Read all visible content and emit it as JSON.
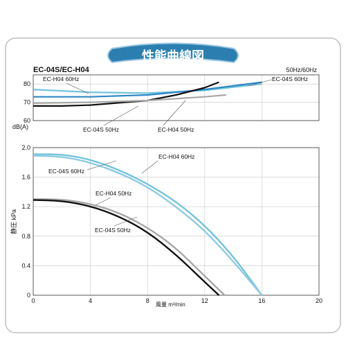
{
  "banner": {
    "title": "性能曲線図"
  },
  "chart_data": [
    {
      "type": "line",
      "title": "EC-04S/EC-H04",
      "note": "50Hz/60Hz",
      "xlabel": "",
      "ylabel": "dB(A)",
      "xlim": [
        0,
        20
      ],
      "ylim": [
        60,
        85
      ],
      "yticks": [
        "80",
        "70",
        "60"
      ],
      "grid": true,
      "series": [
        {
          "name": "EC-H04 60Hz",
          "color": "#73c3dc",
          "x": [
            0,
            4,
            8,
            12,
            16
          ],
          "y": [
            77,
            75.5,
            75,
            76.5,
            80
          ]
        },
        {
          "name": "EC-04S 60Hz",
          "color": "#2f86c4",
          "x": [
            0,
            4,
            8,
            12,
            16
          ],
          "y": [
            73,
            73,
            74,
            77,
            81
          ]
        },
        {
          "name": "EC-04S 50Hz",
          "color": "#111111",
          "x": [
            0,
            2,
            4,
            8,
            10,
            12,
            13
          ],
          "y": [
            68,
            68,
            68.5,
            71,
            74,
            78,
            81
          ]
        },
        {
          "name": "EC-H04 50Hz",
          "color": "#a7a7a7",
          "x": [
            0,
            4,
            8,
            12,
            13.5
          ],
          "y": [
            69.5,
            70,
            71,
            73,
            74
          ]
        }
      ],
      "labels": [
        {
          "text": "EC-H04 60Hz",
          "series": 0
        },
        {
          "text": "EC-04S 60Hz",
          "series": 1
        },
        {
          "text": "EC-04S 50Hz",
          "series": 2
        },
        {
          "text": "EC-H04 50Hz",
          "series": 3
        }
      ]
    },
    {
      "type": "line",
      "xlabel": "風量 m³/min",
      "ylabel": "静圧 kPa",
      "xlim": [
        0,
        20
      ],
      "ylim": [
        0,
        2.0
      ],
      "xticks": [
        "0",
        "4",
        "8",
        "12",
        "16",
        "20"
      ],
      "yticks": [
        "2.0",
        "1.6",
        "1.2",
        "0.8",
        "0.4",
        "0"
      ],
      "grid": true,
      "series": [
        {
          "name": "EC-H04 60Hz",
          "color": "#73c3dc",
          "x": [
            0,
            2,
            4,
            6,
            8,
            10,
            12,
            14,
            16
          ],
          "y": [
            1.91,
            1.91,
            1.84,
            1.7,
            1.51,
            1.27,
            0.95,
            0.53,
            0
          ]
        },
        {
          "name": "EC-04S 60Hz",
          "color": "#8ccbe1",
          "x": [
            0,
            2,
            4,
            6,
            8,
            10,
            12,
            14,
            16
          ],
          "y": [
            1.89,
            1.88,
            1.8,
            1.66,
            1.47,
            1.2,
            0.88,
            0.46,
            0
          ]
        },
        {
          "name": "EC-H04 50Hz",
          "color": "#a7a7a7",
          "x": [
            0,
            2,
            4,
            6,
            8,
            10,
            12,
            13.4
          ],
          "y": [
            1.3,
            1.3,
            1.24,
            1.12,
            0.92,
            0.64,
            0.26,
            0
          ]
        },
        {
          "name": "EC-04S 50Hz",
          "color": "#111111",
          "x": [
            0,
            2,
            4,
            6,
            8,
            10,
            12,
            13
          ],
          "y": [
            1.29,
            1.28,
            1.21,
            1.07,
            0.86,
            0.55,
            0.18,
            0
          ]
        }
      ],
      "labels": [
        {
          "text": "EC-H04 60Hz",
          "series": 0
        },
        {
          "text": "EC-04S 60Hz",
          "series": 1
        },
        {
          "text": "EC-H04 50Hz",
          "series": 2
        },
        {
          "text": "EC-04S 50Hz",
          "series": 3
        }
      ]
    }
  ]
}
